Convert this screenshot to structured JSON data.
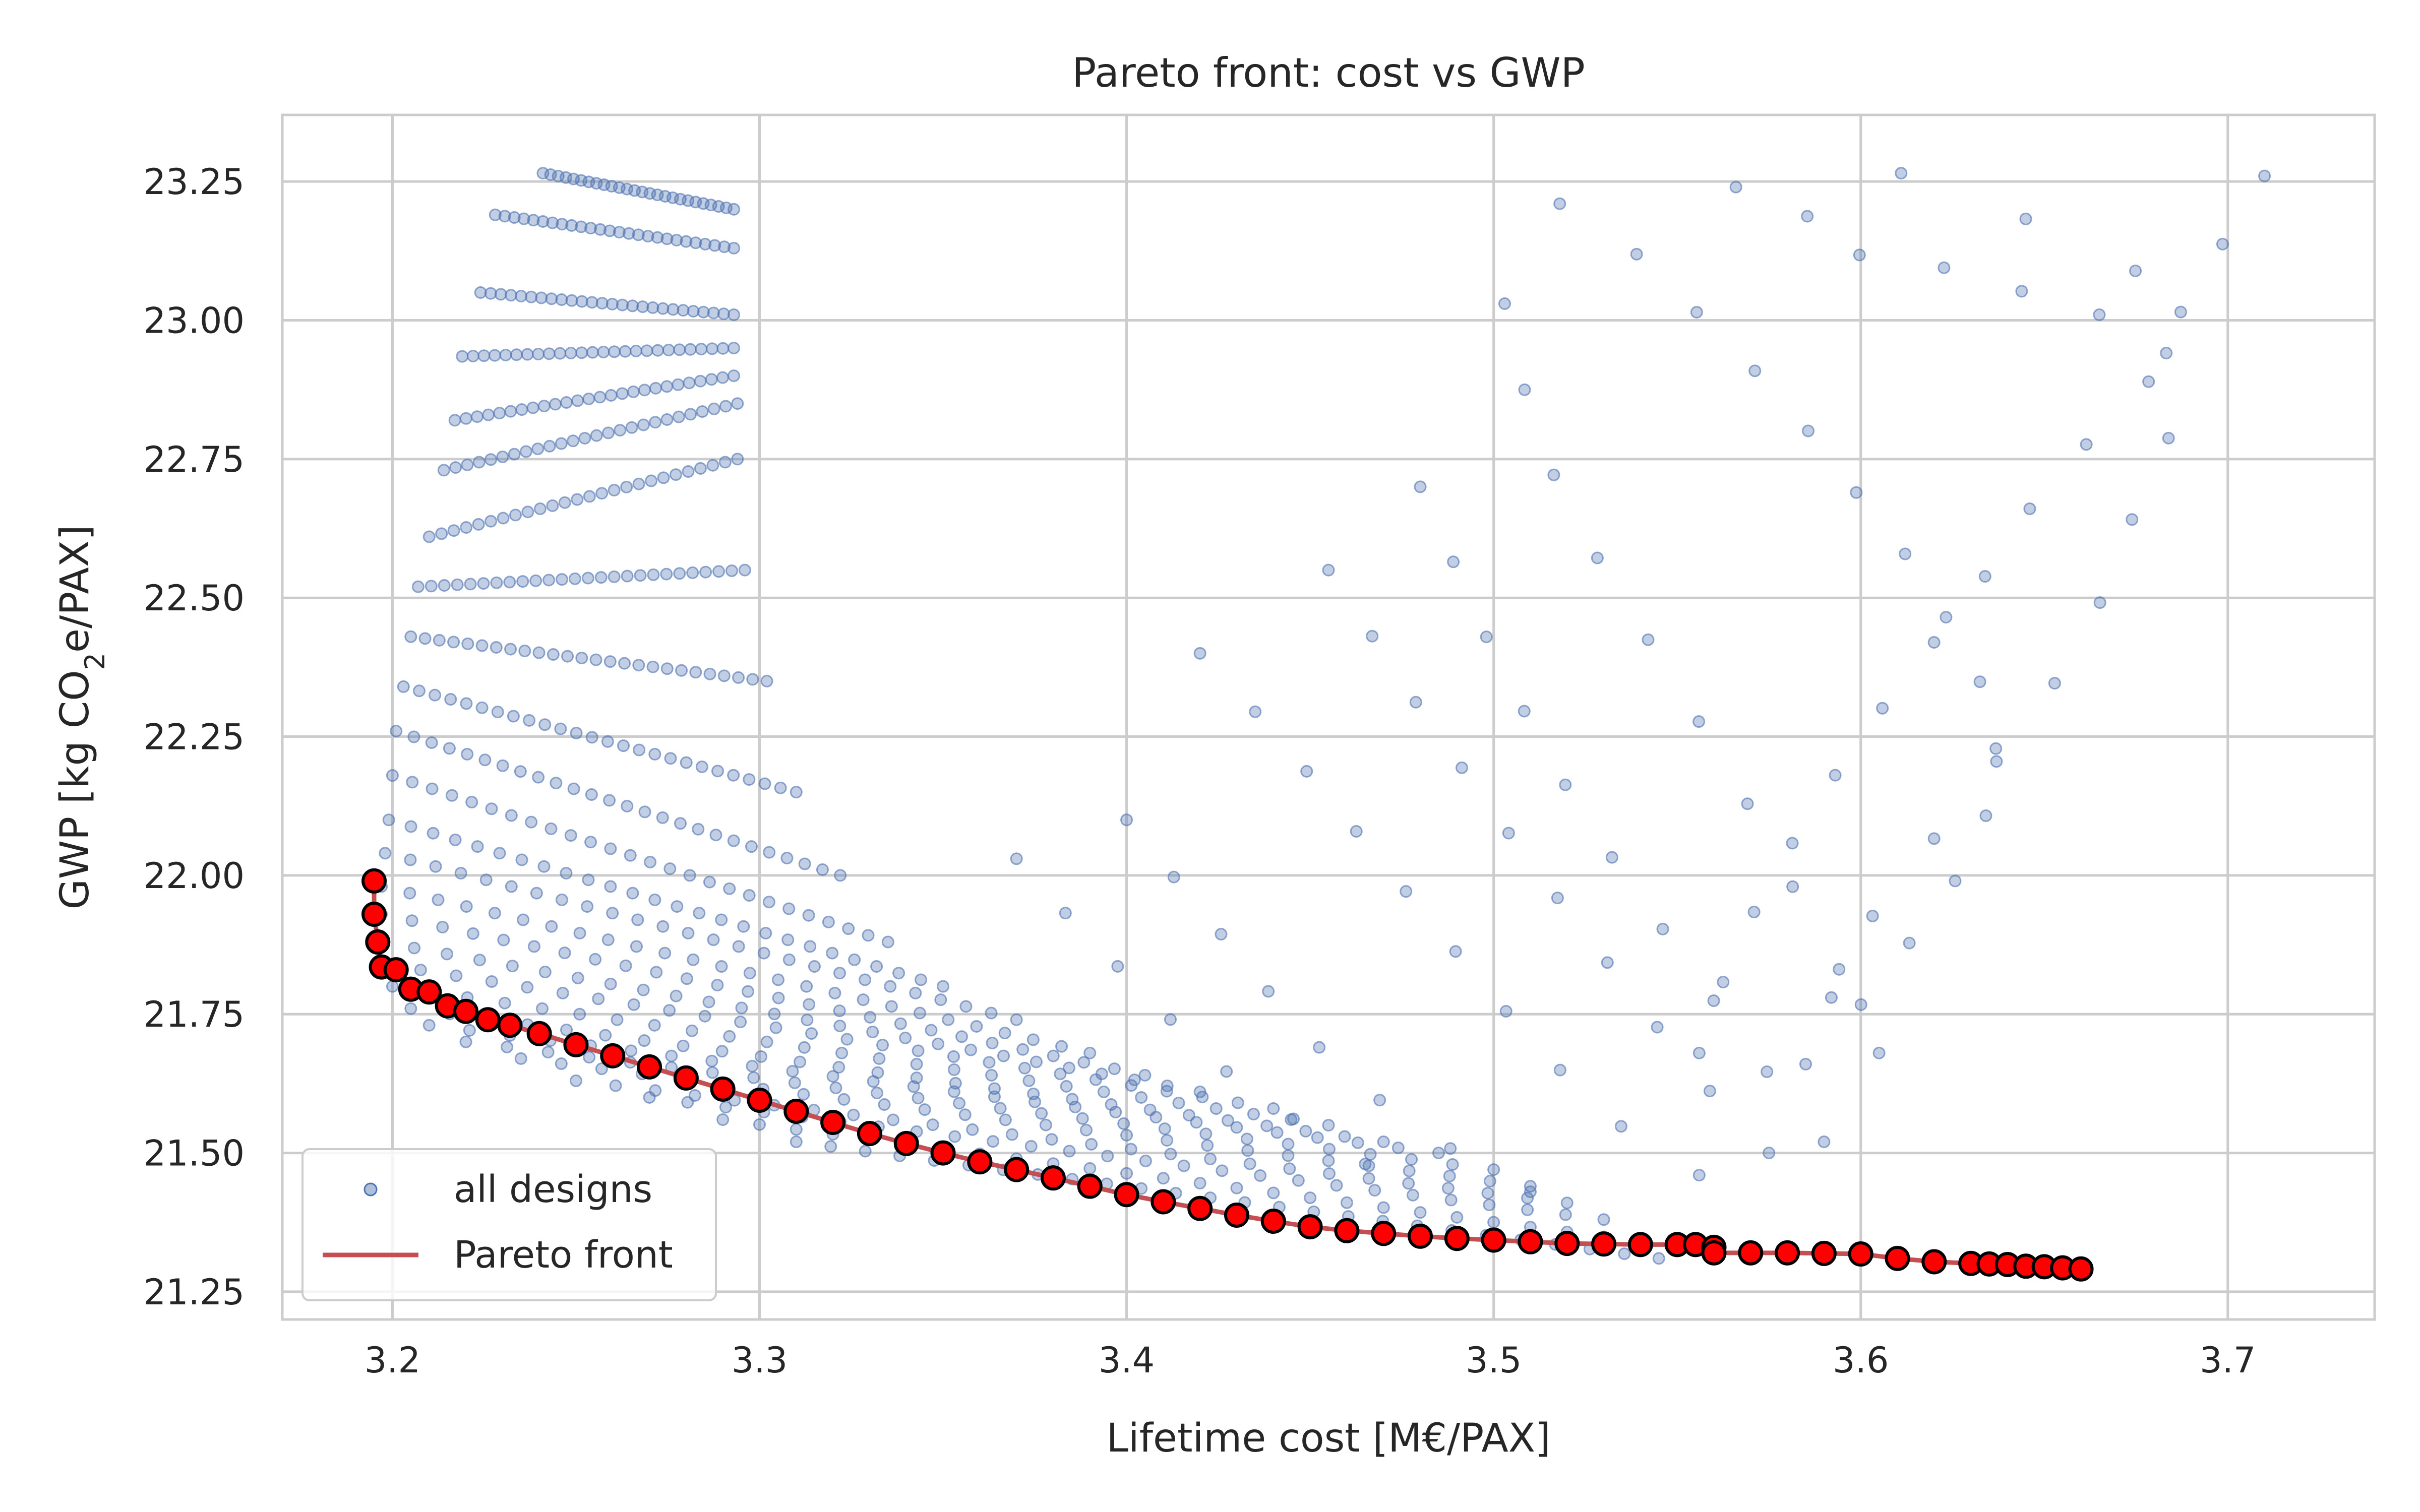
{
  "chart_data": {
    "type": "scatter",
    "title": "Pareto front: cost vs GWP",
    "xlabel": "Lifetime cost [M€/PAX]",
    "ylabel_parts": {
      "pre": "GWP [kg CO",
      "sub": "2",
      "post": "e/PAX]"
    },
    "xlim": [
      3.17,
      3.74
    ],
    "ylim": [
      21.2,
      23.37
    ],
    "xticks": [
      3.2,
      3.3,
      3.4,
      3.5,
      3.6,
      3.7
    ],
    "xtick_labels": [
      "3.2",
      "3.3",
      "3.4",
      "3.5",
      "3.6",
      "3.7"
    ],
    "yticks": [
      21.25,
      21.5,
      21.75,
      22.0,
      22.25,
      22.5,
      22.75,
      23.0,
      23.25
    ],
    "ytick_labels": [
      "21.25",
      "21.50",
      "21.75",
      "22.00",
      "22.25",
      "22.50",
      "22.75",
      "23.00",
      "23.25"
    ],
    "grid": true,
    "legend_position": "lower-left",
    "legend": [
      {
        "name": "all designs",
        "kind": "marker"
      },
      {
        "name": "Pareto front",
        "kind": "line"
      }
    ],
    "colors": {
      "all_designs": "#4c72b0",
      "pareto_line": "#c44e52",
      "pareto_marker": "#ff0000",
      "pareto_edge": "#000000",
      "grid": "#cccccc",
      "frame": "#cccccc"
    },
    "all_designs": {
      "lobe1_fans": [
        [
          [
            3.241,
            23.265
          ],
          [
            3.293,
            23.2
          ]
        ],
        [
          [
            3.228,
            23.19
          ],
          [
            3.293,
            23.13
          ]
        ],
        [
          [
            3.224,
            23.05
          ],
          [
            3.293,
            23.01
          ]
        ],
        [
          [
            3.219,
            22.935
          ],
          [
            3.293,
            22.95
          ]
        ],
        [
          [
            3.217,
            22.82
          ],
          [
            3.293,
            22.9
          ]
        ],
        [
          [
            3.214,
            22.73
          ],
          [
            3.294,
            22.85
          ]
        ],
        [
          [
            3.21,
            22.61
          ],
          [
            3.294,
            22.75
          ]
        ],
        [
          [
            3.207,
            22.52
          ],
          [
            3.296,
            22.55
          ]
        ],
        [
          [
            3.205,
            22.43
          ],
          [
            3.302,
            22.35
          ]
        ],
        [
          [
            3.203,
            22.34
          ],
          [
            3.31,
            22.15
          ]
        ],
        [
          [
            3.201,
            22.26
          ],
          [
            3.322,
            22.0
          ]
        ],
        [
          [
            3.2,
            22.18
          ],
          [
            3.335,
            21.88
          ]
        ],
        [
          [
            3.199,
            22.1
          ],
          [
            3.35,
            21.8
          ]
        ],
        [
          [
            3.198,
            22.04
          ],
          [
            3.37,
            21.74
          ]
        ],
        [
          [
            3.197,
            21.98
          ],
          [
            3.39,
            21.68
          ]
        ],
        [
          [
            3.197,
            21.93
          ],
          [
            3.405,
            21.64
          ]
        ],
        [
          [
            3.197,
            21.88
          ],
          [
            3.42,
            21.61
          ]
        ],
        [
          [
            3.198,
            21.84
          ],
          [
            3.44,
            21.58
          ]
        ],
        [
          [
            3.2,
            21.8
          ],
          [
            3.455,
            21.55
          ]
        ],
        [
          [
            3.205,
            21.76
          ],
          [
            3.47,
            21.52
          ]
        ],
        [
          [
            3.21,
            21.73
          ],
          [
            3.485,
            21.5
          ]
        ],
        [
          [
            3.22,
            21.7
          ],
          [
            3.5,
            21.47
          ]
        ],
        [
          [
            3.235,
            21.67
          ],
          [
            3.51,
            21.44
          ]
        ],
        [
          [
            3.25,
            21.63
          ],
          [
            3.52,
            21.41
          ]
        ],
        [
          [
            3.27,
            21.6
          ],
          [
            3.53,
            21.38
          ]
        ],
        [
          [
            3.29,
            21.56
          ],
          [
            3.54,
            21.34
          ]
        ],
        [
          [
            3.31,
            21.52
          ],
          [
            3.545,
            21.31
          ]
        ]
      ],
      "lobe2_fans": [
        [
          [
            3.611,
            23.265
          ],
          [
            3.63,
            23.22
          ],
          [
            3.654,
            23.16
          ],
          [
            3.672,
            23.12
          ],
          [
            3.683,
            23.0
          ],
          [
            3.684,
            22.75
          ],
          [
            3.675,
            22.66
          ],
          [
            3.661,
            22.42
          ],
          [
            3.64,
            22.23
          ],
          [
            3.618,
            22.05
          ],
          [
            3.6,
            21.9
          ],
          [
            3.592,
            21.78
          ]
        ],
        [
          [
            3.71,
            23.26
          ],
          [
            3.7,
            23.15
          ],
          [
            3.69,
            23.06
          ],
          [
            3.68,
            22.9
          ],
          [
            3.665,
            22.8
          ],
          [
            3.65,
            22.7
          ],
          [
            3.64,
            22.6
          ],
          [
            3.63,
            22.5
          ],
          [
            3.615,
            22.38
          ],
          [
            3.6,
            22.25
          ],
          [
            3.585,
            22.1
          ],
          [
            3.572,
            21.95
          ],
          [
            3.562,
            21.8
          ],
          [
            3.556,
            21.68
          ]
        ],
        [
          [
            3.518,
            23.21
          ],
          [
            3.534,
            23.15
          ],
          [
            3.55,
            23.05
          ],
          [
            3.565,
            22.95
          ],
          [
            3.58,
            22.85
          ],
          [
            3.595,
            22.72
          ],
          [
            3.61,
            22.6
          ],
          [
            3.622,
            22.48
          ],
          [
            3.632,
            22.36
          ],
          [
            3.637,
            22.24
          ],
          [
            3.635,
            22.12
          ],
          [
            3.625,
            21.98
          ],
          [
            3.61,
            21.85
          ],
          [
            3.598,
            21.75
          ],
          [
            3.585,
            21.66
          ]
        ],
        [
          [
            3.566,
            23.24
          ],
          [
            3.585,
            23.19
          ],
          [
            3.597,
            23.12
          ],
          [
            3.62,
            23.1
          ],
          [
            3.645,
            23.05
          ],
          [
            3.665,
            23.01
          ]
        ],
        [
          [
            3.503,
            23.03
          ],
          [
            3.51,
            22.83
          ],
          [
            3.52,
            22.66
          ],
          [
            3.535,
            22.5
          ],
          [
            3.55,
            22.34
          ],
          [
            3.565,
            22.18
          ],
          [
            3.578,
            22.02
          ],
          [
            3.59,
            21.88
          ],
          [
            3.6,
            21.76
          ],
          [
            3.605,
            21.68
          ]
        ],
        [
          [
            3.48,
            22.7
          ],
          [
            3.49,
            22.55
          ],
          [
            3.5,
            22.4
          ],
          [
            3.512,
            22.25
          ],
          [
            3.525,
            22.1
          ],
          [
            3.54,
            21.96
          ],
          [
            3.555,
            21.82
          ],
          [
            3.568,
            21.7
          ],
          [
            3.58,
            21.6
          ],
          [
            3.59,
            21.52
          ]
        ],
        [
          [
            3.455,
            22.55
          ],
          [
            3.47,
            22.4
          ],
          [
            3.482,
            22.28
          ],
          [
            3.495,
            22.16
          ],
          [
            3.508,
            22.04
          ],
          [
            3.522,
            21.92
          ],
          [
            3.536,
            21.8
          ],
          [
            3.55,
            21.68
          ],
          [
            3.563,
            21.58
          ],
          [
            3.575,
            21.5
          ]
        ],
        [
          [
            3.42,
            22.4
          ],
          [
            3.44,
            22.26
          ],
          [
            3.455,
            22.14
          ],
          [
            3.47,
            22.02
          ],
          [
            3.485,
            21.9
          ],
          [
            3.5,
            21.78
          ],
          [
            3.515,
            21.67
          ],
          [
            3.53,
            21.57
          ],
          [
            3.545,
            21.5
          ],
          [
            3.556,
            21.46
          ]
        ],
        [
          [
            3.4,
            22.1
          ],
          [
            3.415,
            21.98
          ],
          [
            3.43,
            21.86
          ],
          [
            3.445,
            21.74
          ],
          [
            3.46,
            21.64
          ],
          [
            3.478,
            21.55
          ],
          [
            3.495,
            21.48
          ],
          [
            3.51,
            21.43
          ]
        ],
        [
          [
            3.37,
            22.03
          ],
          [
            3.385,
            21.92
          ],
          [
            3.4,
            21.82
          ],
          [
            3.415,
            21.72
          ],
          [
            3.43,
            21.63
          ],
          [
            3.448,
            21.55
          ],
          [
            3.465,
            21.48
          ]
        ]
      ]
    },
    "pareto_front": [
      [
        3.195,
        21.99
      ],
      [
        3.195,
        21.93
      ],
      [
        3.196,
        21.88
      ],
      [
        3.197,
        21.835
      ],
      [
        3.201,
        21.83
      ],
      [
        3.205,
        21.795
      ],
      [
        3.21,
        21.79
      ],
      [
        3.215,
        21.765
      ],
      [
        3.22,
        21.755
      ],
      [
        3.226,
        21.74
      ],
      [
        3.232,
        21.73
      ],
      [
        3.24,
        21.715
      ],
      [
        3.25,
        21.695
      ],
      [
        3.26,
        21.675
      ],
      [
        3.27,
        21.655
      ],
      [
        3.28,
        21.635
      ],
      [
        3.29,
        21.615
      ],
      [
        3.3,
        21.595
      ],
      [
        3.31,
        21.575
      ],
      [
        3.32,
        21.555
      ],
      [
        3.33,
        21.535
      ],
      [
        3.34,
        21.517
      ],
      [
        3.35,
        21.5
      ],
      [
        3.36,
        21.484
      ],
      [
        3.37,
        21.47
      ],
      [
        3.38,
        21.455
      ],
      [
        3.39,
        21.44
      ],
      [
        3.4,
        21.425
      ],
      [
        3.41,
        21.412
      ],
      [
        3.42,
        21.4
      ],
      [
        3.43,
        21.388
      ],
      [
        3.44,
        21.377
      ],
      [
        3.45,
        21.367
      ],
      [
        3.46,
        21.36
      ],
      [
        3.47,
        21.355
      ],
      [
        3.48,
        21.35
      ],
      [
        3.49,
        21.346
      ],
      [
        3.5,
        21.343
      ],
      [
        3.51,
        21.34
      ],
      [
        3.52,
        21.337
      ],
      [
        3.53,
        21.336
      ],
      [
        3.54,
        21.335
      ],
      [
        3.55,
        21.335
      ],
      [
        3.555,
        21.335
      ],
      [
        3.56,
        21.33
      ],
      [
        3.56,
        21.32
      ],
      [
        3.57,
        21.32
      ],
      [
        3.58,
        21.32
      ],
      [
        3.59,
        21.319
      ],
      [
        3.6,
        21.318
      ],
      [
        3.61,
        21.31
      ],
      [
        3.62,
        21.304
      ],
      [
        3.63,
        21.301
      ],
      [
        3.635,
        21.3
      ],
      [
        3.64,
        21.299
      ],
      [
        3.645,
        21.296
      ],
      [
        3.65,
        21.295
      ],
      [
        3.655,
        21.293
      ],
      [
        3.66,
        21.291
      ]
    ]
  }
}
